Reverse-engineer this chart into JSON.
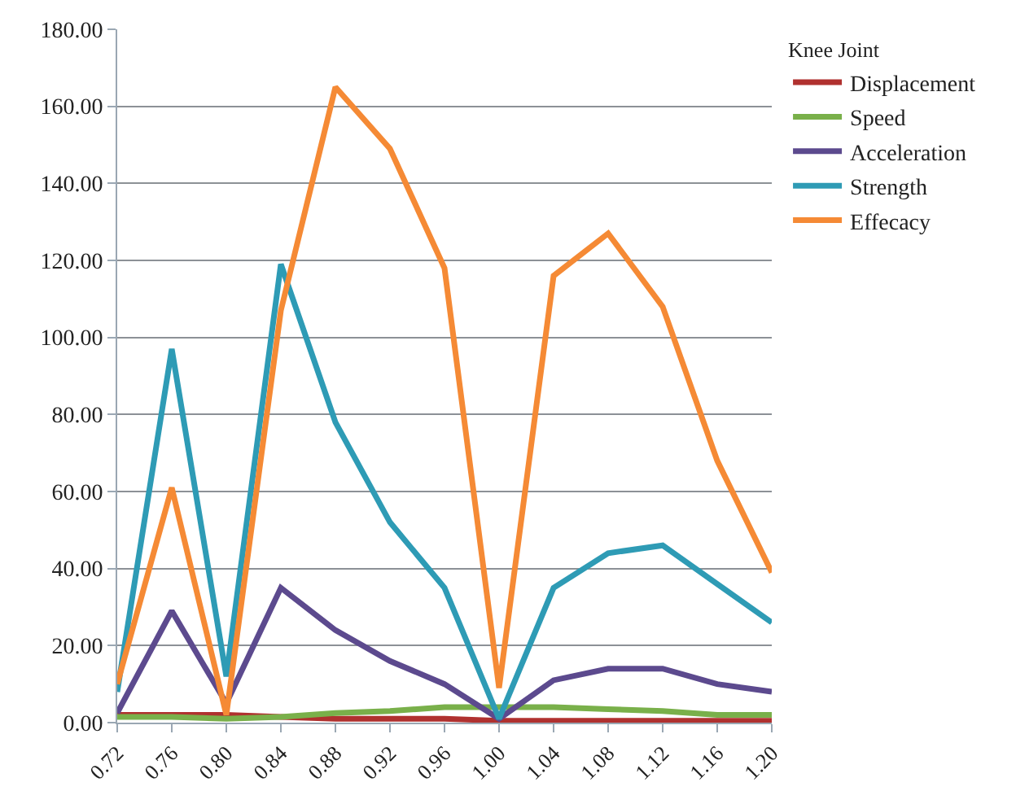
{
  "chart_data": {
    "type": "line",
    "legend_title": "Knee Joint",
    "legend": "top right",
    "grid": "y",
    "marker": "none",
    "line_style": "solid",
    "categories": [
      "0.72",
      "0.76",
      "0.80",
      "0.84",
      "0.88",
      "0.92",
      "0.96",
      "1.00",
      "1.04",
      "1.08",
      "1.12",
      "1.16",
      "1.20"
    ],
    "ylim": [
      0,
      180
    ],
    "yticks": [
      {
        "value": 0,
        "label": "0.00"
      },
      {
        "value": 20,
        "label": "20.00"
      },
      {
        "value": 40,
        "label": "40.00"
      },
      {
        "value": 60,
        "label": "60.00"
      },
      {
        "value": 80,
        "label": "80.00"
      },
      {
        "value": 100,
        "label": "100.00"
      },
      {
        "value": 120,
        "label": "120.00"
      },
      {
        "value": 140,
        "label": "140.00"
      },
      {
        "value": 160,
        "label": "160.00"
      },
      {
        "value": 180,
        "label": "180.00"
      }
    ],
    "series": [
      {
        "name": "Displacement",
        "color": "#b0312f",
        "values": [
          2,
          2,
          2,
          1.5,
          1,
          1,
          1,
          0.5,
          0.5,
          0.5,
          0.5,
          0.5,
          0.5
        ]
      },
      {
        "name": "Speed",
        "color": "#79b04a",
        "values": [
          1.5,
          1.5,
          1,
          1.5,
          2.5,
          3,
          4,
          4,
          4,
          3.5,
          3,
          2,
          2
        ]
      },
      {
        "name": "Acceleration",
        "color": "#5c4a8e",
        "values": [
          2.5,
          29,
          5,
          35,
          24,
          16,
          10,
          1,
          11,
          14,
          14,
          10,
          8
        ]
      },
      {
        "name": "Strength",
        "color": "#2e9bb5",
        "values": [
          8,
          97,
          12,
          119,
          78,
          52,
          35,
          1,
          35,
          44,
          46,
          36,
          26
        ]
      },
      {
        "name": "Effecacy",
        "color": "#f58a35",
        "values": [
          10,
          61,
          2,
          107,
          165,
          149,
          118,
          9,
          116,
          127,
          108,
          68,
          39
        ]
      }
    ]
  }
}
